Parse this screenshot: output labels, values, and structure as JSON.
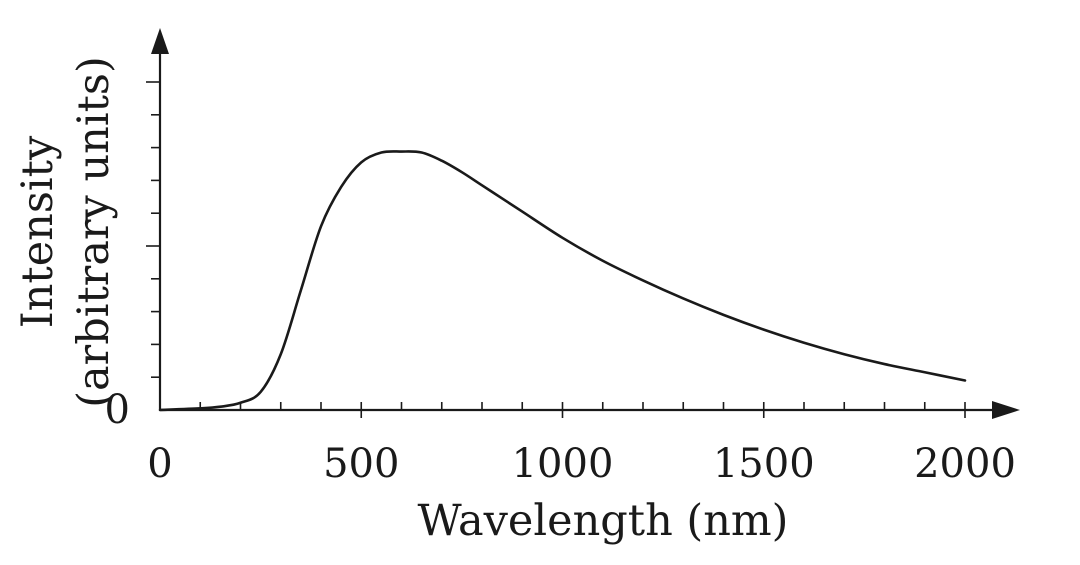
{
  "chart_data": {
    "type": "line",
    "title": "",
    "xlabel": "Wavelength (nm)",
    "ylabel_lines": [
      "Intensity",
      "(arbitrary units)"
    ],
    "xlim": [
      0,
      2000
    ],
    "ylim": [
      0,
      10
    ],
    "x_ticks": [
      0,
      500,
      1000,
      1500,
      2000
    ],
    "x_tick_labels": [
      "0",
      "500",
      "1000",
      "1500",
      "2000"
    ],
    "x_minor_step": 100,
    "y_tick_labels": [
      {
        "value": 0,
        "label": "0"
      }
    ],
    "y_minor_step": 1,
    "grid": false,
    "series": [
      {
        "x": [
          0,
          100,
          150,
          200,
          250,
          300,
          350,
          400,
          450,
          500,
          550,
          600,
          650,
          700,
          750,
          800,
          850,
          900,
          1000,
          1100,
          1200,
          1300,
          1400,
          1500,
          1600,
          1700,
          1800,
          1900,
          2000
        ],
        "y": [
          0.0,
          0.05,
          0.1,
          0.22,
          0.55,
          1.7,
          3.65,
          5.6,
          6.8,
          7.55,
          7.85,
          7.88,
          7.85,
          7.6,
          7.25,
          6.85,
          6.45,
          6.05,
          5.25,
          4.55,
          3.95,
          3.4,
          2.9,
          2.45,
          2.05,
          1.7,
          1.4,
          1.15,
          0.9
        ]
      }
    ]
  }
}
